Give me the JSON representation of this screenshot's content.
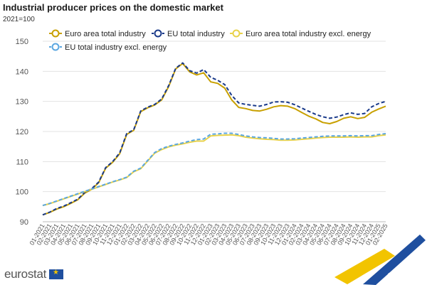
{
  "header": {
    "title": "Industrial producer prices on the domestic market",
    "unit": "2021=100"
  },
  "footer": {
    "logo_text": "eurostat"
  },
  "chart_data": {
    "type": "line",
    "ylim": [
      90,
      150
    ],
    "yticks": [
      90,
      100,
      110,
      120,
      130,
      140,
      150
    ],
    "grid": "horizontal",
    "legend_position": "top",
    "x": [
      "01-2021",
      "02-2021",
      "03-2021",
      "04-2021",
      "05-2021",
      "06-2021",
      "07-2021",
      "08-2021",
      "09-2021",
      "10-2021",
      "11-2021",
      "12-2021",
      "01-2022",
      "02-2022",
      "03-2022",
      "04-2022",
      "05-2022",
      "06-2022",
      "07-2022",
      "08-2022",
      "09-2022",
      "10-2022",
      "11-2022",
      "12-2022",
      "01-2023",
      "02-2023",
      "03-2023",
      "04-2023",
      "05-2023",
      "06-2023",
      "07-2023",
      "08-2023",
      "09-2023",
      "10-2023",
      "11-2023",
      "12-2023",
      "01-2024",
      "02-2024",
      "03-2024",
      "04-2024",
      "05-2024",
      "06-2024",
      "07-2024",
      "08-2024",
      "09-2024",
      "10-2024",
      "11-2024",
      "12-2024",
      "01-2025",
      "02-2025"
    ],
    "series": [
      {
        "name": "Euro area total industry",
        "color": "#c8a000",
        "dash": "solid",
        "values": [
          92.3,
          93.1,
          94.2,
          95.0,
          96.1,
          97.3,
          99.5,
          100.8,
          103.0,
          107.8,
          109.8,
          112.6,
          119.0,
          120.4,
          126.6,
          127.9,
          128.8,
          130.5,
          135.0,
          140.8,
          142.6,
          139.8,
          138.8,
          139.5,
          136.5,
          136.0,
          134.4,
          130.5,
          128.0,
          127.6,
          127.0,
          126.8,
          127.4,
          128.2,
          128.6,
          128.4,
          127.6,
          126.3,
          125.1,
          124.2,
          123.0,
          122.6,
          123.3,
          124.4,
          124.9,
          124.3,
          124.7,
          126.4,
          127.5,
          128.4
        ]
      },
      {
        "name": "EU total industry",
        "color": "#1a3a8a",
        "dash": "dashed",
        "values": [
          92.3,
          93.2,
          94.4,
          95.2,
          96.3,
          97.5,
          99.7,
          101.0,
          103.2,
          108.0,
          110.0,
          112.9,
          119.3,
          120.6,
          126.8,
          128.1,
          129.0,
          130.8,
          135.3,
          141.0,
          142.8,
          140.2,
          139.4,
          140.6,
          138.0,
          137.0,
          135.6,
          132.0,
          129.5,
          129.0,
          128.7,
          128.4,
          129.0,
          129.8,
          129.9,
          129.7,
          128.9,
          127.8,
          126.7,
          125.7,
          124.9,
          124.4,
          124.8,
          125.6,
          126.2,
          125.7,
          126.0,
          128.2,
          129.3,
          130.0
        ]
      },
      {
        "name": "Euro area total industry excl. energy",
        "color": "#e8d24a",
        "dash": "solid",
        "values": [
          95.4,
          96.0,
          96.8,
          97.6,
          98.4,
          99.2,
          100.0,
          100.8,
          101.6,
          102.4,
          103.2,
          103.9,
          104.7,
          106.6,
          107.6,
          110.2,
          112.8,
          114.0,
          114.9,
          115.5,
          115.9,
          116.4,
          116.8,
          116.8,
          118.5,
          118.7,
          118.8,
          118.9,
          118.6,
          118.1,
          117.8,
          117.6,
          117.4,
          117.3,
          117.1,
          117.1,
          117.2,
          117.4,
          117.6,
          117.8,
          118.0,
          118.1,
          118.1,
          118.1,
          118.2,
          118.1,
          118.2,
          118.2,
          118.6,
          118.9
        ]
      },
      {
        "name": "EU total industry excl. energy",
        "color": "#5aa6e0",
        "dash": "dashed",
        "values": [
          95.4,
          96.1,
          96.9,
          97.7,
          98.5,
          99.3,
          100.1,
          100.9,
          101.7,
          102.5,
          103.3,
          104.0,
          104.8,
          106.8,
          107.8,
          110.4,
          113.0,
          114.3,
          115.1,
          115.7,
          116.2,
          116.8,
          117.3,
          117.5,
          119.1,
          119.2,
          119.4,
          119.4,
          119.0,
          118.5,
          118.2,
          118.0,
          117.9,
          117.7,
          117.5,
          117.5,
          117.6,
          117.8,
          118.0,
          118.2,
          118.4,
          118.5,
          118.5,
          118.5,
          118.6,
          118.5,
          118.6,
          118.6,
          119.0,
          119.3
        ]
      }
    ]
  }
}
